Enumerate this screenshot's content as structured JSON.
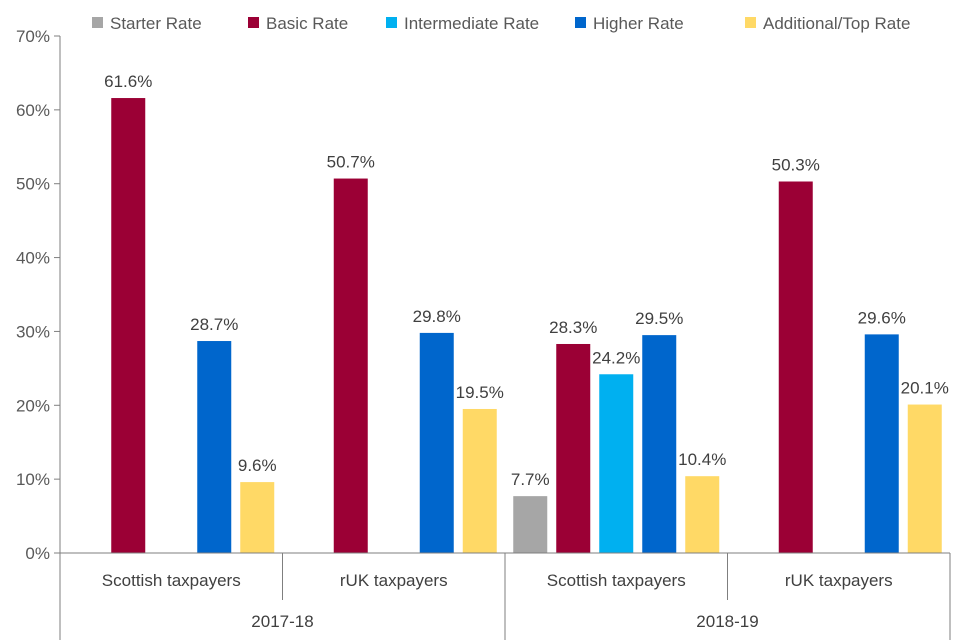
{
  "chart_data": {
    "type": "bar",
    "title": "",
    "xlabel": "",
    "ylabel": "",
    "ylim": [
      0,
      70
    ],
    "y_ticks": [
      "0%",
      "10%",
      "20%",
      "30%",
      "40%",
      "50%",
      "60%",
      "70%"
    ],
    "y_tick_values": [
      0,
      10,
      20,
      30,
      40,
      50,
      60,
      70
    ],
    "legend_position": "top",
    "grid": false,
    "groups": [
      {
        "label": "2017-18",
        "categories": [
          "Scottish taxpayers",
          "rUK taxpayers"
        ]
      },
      {
        "label": "2018-19",
        "categories": [
          "Scottish taxpayers",
          "rUK taxpayers"
        ]
      }
    ],
    "categories": [
      "Scottish taxpayers",
      "rUK taxpayers",
      "Scottish taxpayers",
      "rUK taxpayers"
    ],
    "series": [
      {
        "name": "Starter Rate",
        "color": "#a6a6a6",
        "values": [
          null,
          null,
          7.7,
          null
        ],
        "labels": [
          "",
          "",
          "7.7%",
          ""
        ]
      },
      {
        "name": "Basic Rate",
        "color": "#9b0035",
        "values": [
          61.6,
          50.7,
          28.3,
          50.3
        ],
        "labels": [
          "61.6%",
          "50.7%",
          "28.3%",
          "50.3%"
        ]
      },
      {
        "name": "Intermediate Rate",
        "color": "#00b0f0",
        "values": [
          null,
          null,
          24.2,
          null
        ],
        "labels": [
          "",
          "",
          "24.2%",
          ""
        ]
      },
      {
        "name": "Higher Rate",
        "color": "#0066cc",
        "values": [
          28.7,
          29.8,
          29.5,
          29.6
        ],
        "labels": [
          "28.7%",
          "29.8%",
          "29.5%",
          "29.6%"
        ]
      },
      {
        "name": "Additional/Top Rate",
        "color": "#ffd966",
        "values": [
          9.6,
          19.5,
          10.4,
          20.1
        ],
        "labels": [
          "9.6%",
          "19.5%",
          "10.4%",
          "20.1%"
        ]
      }
    ]
  }
}
